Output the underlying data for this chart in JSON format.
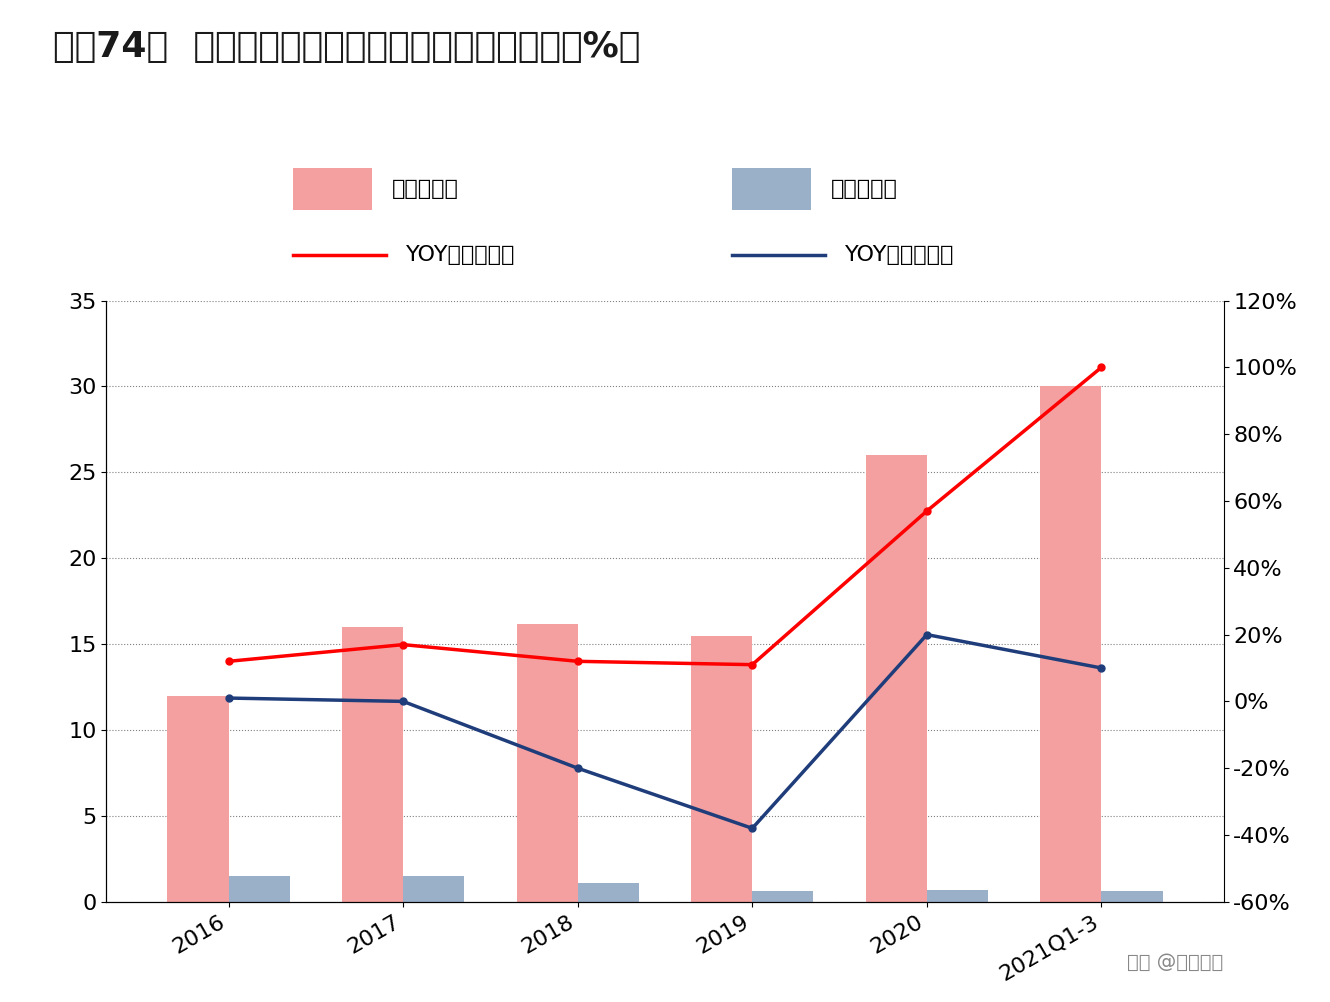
{
  "title": "图表74：  文灿股份营业收入、归母净利润（亿元；%）",
  "categories": [
    "2016",
    "2017",
    "2018",
    "2019",
    "2020",
    "2021Q1-3"
  ],
  "revenue": [
    12.0,
    16.0,
    16.2,
    15.5,
    26.0,
    30.0
  ],
  "net_profit": [
    1.5,
    1.5,
    1.1,
    0.6,
    0.7,
    0.6
  ],
  "yoy_revenue": [
    0.12,
    0.17,
    0.12,
    0.11,
    0.57,
    1.0
  ],
  "yoy_net_profit": [
    0.01,
    0.0,
    -0.2,
    -0.38,
    0.2,
    0.1
  ],
  "bar_color_revenue": "#F4A0A0",
  "bar_color_profit": "#9AB0C8",
  "line_color_revenue": "#FF0000",
  "line_color_profit": "#1F3D7A",
  "ylim_left": [
    0,
    35
  ],
  "ylim_right": [
    -0.6,
    1.2
  ],
  "yticks_left": [
    0,
    5,
    10,
    15,
    20,
    25,
    30,
    35
  ],
  "yticks_right": [
    -0.6,
    -0.4,
    -0.2,
    0.0,
    0.2,
    0.4,
    0.6,
    0.8,
    1.0,
    1.2
  ],
  "ytick_labels_right": [
    "-60%",
    "-40%",
    "-20%",
    "0%",
    "20%",
    "40%",
    "60%",
    "80%",
    "100%",
    "120%"
  ],
  "background_color": "#FFFFFF",
  "title_color": "#1A1A1A",
  "bar_width": 0.35,
  "watermark": "头条 @未来智库",
  "blue_bar_color": "#1F4E79"
}
